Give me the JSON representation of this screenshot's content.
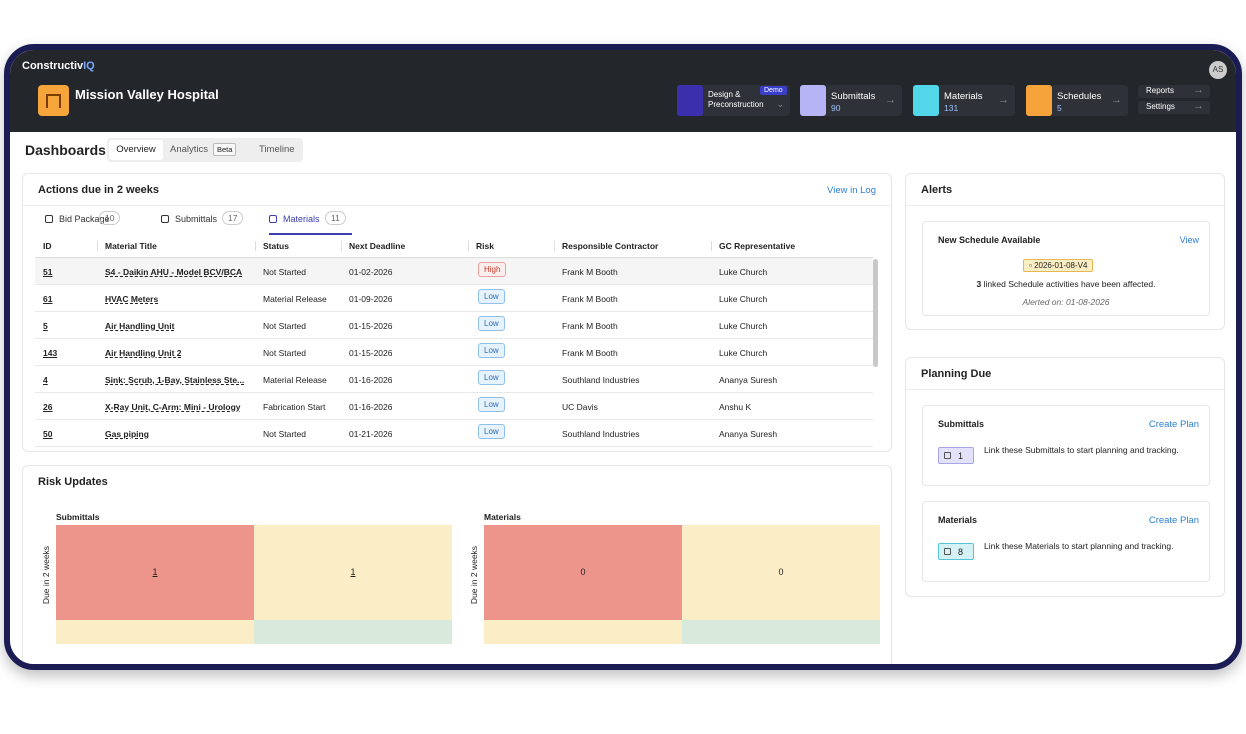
{
  "brand": {
    "main": "Constructiv",
    "accent": "IQ"
  },
  "project": "Mission Valley Hospital",
  "modules": [
    {
      "label": "Design & Preconstruction",
      "badge": "Demo"
    },
    {
      "label": "Submittals",
      "count": 90
    },
    {
      "label": "Materials",
      "count": 131
    },
    {
      "label": "Schedules",
      "count": 5
    }
  ],
  "links": [
    "Reports",
    "Settings"
  ],
  "user": "AS",
  "page": {
    "title": "Dashboards",
    "tabs": [
      {
        "label": "Overview"
      },
      {
        "label": "Analytics",
        "badge": "Beta"
      },
      {
        "label": "Timeline"
      }
    ]
  },
  "actions": {
    "title": "Actions due in 2 weeks",
    "link": "View in Log",
    "tabs": [
      {
        "label": "Bid Package",
        "count": 10
      },
      {
        "label": "Submittals",
        "count": 17
      },
      {
        "label": "Materials",
        "count": 11
      }
    ],
    "columns": [
      "ID",
      "Material Title",
      "Status",
      "Next Deadline",
      "Risk",
      "Responsible Contractor",
      "GC Representative"
    ],
    "rows": [
      [
        "51",
        "S4 - Daikin AHU - Model BCV/BCA",
        "Not Started",
        "01-02-2026",
        "High",
        "Frank M Booth",
        "Luke Church"
      ],
      [
        "61",
        "HVAC Meters",
        "Material Release",
        "01-09-2026",
        "Low",
        "Frank M Booth",
        "Luke Church"
      ],
      [
        "5",
        "Air Handling Unit",
        "Not Started",
        "01-15-2026",
        "Low",
        "Frank M Booth",
        "Luke Church"
      ],
      [
        "143",
        "Air Handling Unit 2",
        "Not Started",
        "01-15-2026",
        "Low",
        "Frank M Booth",
        "Luke Church"
      ],
      [
        "4",
        "Sink: Scrub, 1-Bay, Stainless Ste...",
        "Material Release",
        "01-16-2026",
        "Low",
        "Southland Industries",
        "Ananya Suresh"
      ],
      [
        "26",
        "X-Ray Unit, C-Arm: Mini - Urology",
        "Fabrication Start",
        "01-16-2026",
        "Low",
        "UC Davis",
        "Anshu K"
      ],
      [
        "50",
        "Gas piping",
        "Not Started",
        "01-21-2026",
        "Low",
        "Southland Industries",
        "Ananya Suresh"
      ]
    ]
  },
  "risk_updates": {
    "title": "Risk Updates",
    "charts": [
      {
        "title": "Submittals",
        "y_label": "Due in 2 weeks",
        "cells": [
          1,
          1
        ]
      },
      {
        "title": "Materials",
        "y_label": "Due in 2 weeks",
        "cells": [
          0,
          0
        ]
      }
    ]
  },
  "alerts": {
    "title": "Alerts",
    "card": {
      "title": "New Schedule Available",
      "link": "View",
      "tag": "2026-01-08-V4",
      "count": 3,
      "text": "linked Schedule activities have been affected.",
      "date": "Alerted on: 01-08-2026"
    }
  },
  "planning": {
    "title": "Planning Due",
    "cards": [
      {
        "title": "Submittals",
        "link": "Create Plan",
        "count": 1,
        "text": "Link these Submittals to start planning and tracking."
      },
      {
        "title": "Materials",
        "link": "Create Plan",
        "count": 8,
        "text": "Link these Materials to start planning and tracking."
      }
    ]
  }
}
